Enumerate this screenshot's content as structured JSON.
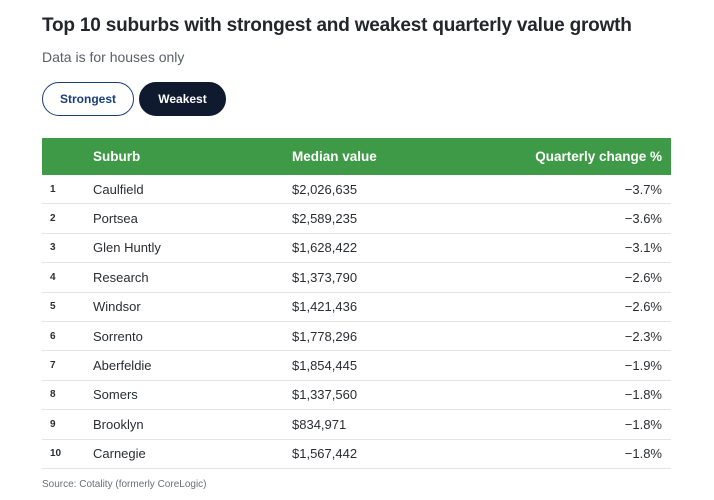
{
  "title": "Top 10 suburbs with strongest and weakest quarterly value growth",
  "subtitle": "Data is for houses only",
  "toggles": {
    "strongest": "Strongest",
    "weakest": "Weakest",
    "selected": "Weakest"
  },
  "colors": {
    "header_green": "#3f9a47",
    "selected_toggle": "#0f1a2e",
    "toggle_outline": "#1a3d7c"
  },
  "table": {
    "headers": {
      "rank": "",
      "suburb": "Suburb",
      "median": "Median value",
      "change": "Quarterly change %"
    },
    "rows": [
      {
        "rank": "1",
        "suburb": "Caulfield",
        "median": "$2,026,635",
        "change": "−3.7%"
      },
      {
        "rank": "2",
        "suburb": "Portsea",
        "median": "$2,589,235",
        "change": "−3.6%"
      },
      {
        "rank": "3",
        "suburb": "Glen Huntly",
        "median": "$1,628,422",
        "change": "−3.1%"
      },
      {
        "rank": "4",
        "suburb": "Research",
        "median": "$1,373,790",
        "change": "−2.6%"
      },
      {
        "rank": "5",
        "suburb": "Windsor",
        "median": "$1,421,436",
        "change": "−2.6%"
      },
      {
        "rank": "6",
        "suburb": "Sorrento",
        "median": "$1,778,296",
        "change": "−2.3%"
      },
      {
        "rank": "7",
        "suburb": "Aberfeldie",
        "median": "$1,854,445",
        "change": "−1.9%"
      },
      {
        "rank": "8",
        "suburb": "Somers",
        "median": "$1,337,560",
        "change": "−1.8%"
      },
      {
        "rank": "9",
        "suburb": "Brooklyn",
        "median": "$834,971",
        "change": "−1.8%"
      },
      {
        "rank": "10",
        "suburb": "Carnegie",
        "median": "$1,567,442",
        "change": "−1.8%"
      }
    ]
  },
  "source": "Source: Cotality (formerly CoreLogic)"
}
